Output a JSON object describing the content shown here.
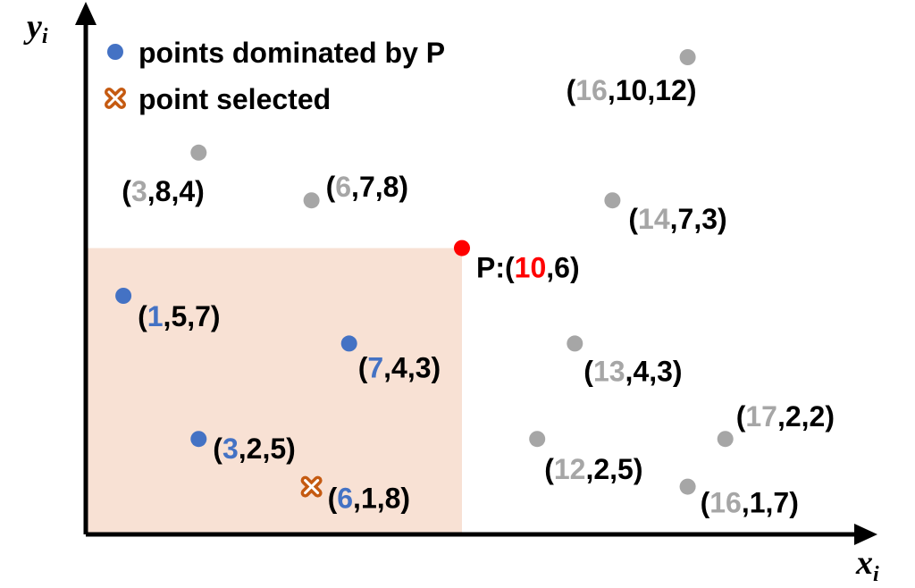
{
  "colors": {
    "region": "#f8e1d4",
    "axis": "#000000",
    "dominated": "#4472c4",
    "other": "#a6a6a6",
    "p": "#ff0000",
    "selected": "#c55a11",
    "text": "#000000"
  },
  "axes": {
    "x": {
      "label": "x",
      "sub": "i"
    },
    "y": {
      "label": "y",
      "sub": "i"
    }
  },
  "legend": {
    "dominated": {
      "icon": "blue-dot-icon",
      "label": "points dominated by P"
    },
    "selected": {
      "icon": "orange-cross-icon",
      "label": "point selected"
    }
  },
  "region": {
    "x_max": 10,
    "y_max": 6
  },
  "chart_data": {
    "type": "scatter",
    "dominator": {
      "x": 10,
      "y": 6,
      "prefix": "P:(",
      "first": "10",
      "rest": ",6)"
    },
    "points": [
      {
        "x": 3,
        "y": 8,
        "first": "3",
        "rest": ",8,4)",
        "kind": "other"
      },
      {
        "x": 6,
        "y": 7,
        "first": "6",
        "rest": ",7,8)",
        "kind": "other"
      },
      {
        "x": 16,
        "y": 10,
        "first": "16",
        "rest": ",10,12)",
        "kind": "other"
      },
      {
        "x": 14,
        "y": 7,
        "first": "14",
        "rest": ",7,3)",
        "kind": "other"
      },
      {
        "x": 13,
        "y": 4,
        "first": "13",
        "rest": ",4,3)",
        "kind": "other"
      },
      {
        "x": 17,
        "y": 2,
        "first": "17",
        "rest": ",2,2)",
        "kind": "other"
      },
      {
        "x": 12,
        "y": 2,
        "first": "12",
        "rest": ",2,5)",
        "kind": "other"
      },
      {
        "x": 16,
        "y": 1,
        "first": "16",
        "rest": ",1,7)",
        "kind": "other"
      },
      {
        "x": 1,
        "y": 5,
        "first": "1",
        "rest": ",5,7)",
        "kind": "dominated"
      },
      {
        "x": 7,
        "y": 4,
        "first": "7",
        "rest": ",4,3)",
        "kind": "dominated"
      },
      {
        "x": 3,
        "y": 2,
        "first": "3",
        "rest": ",2,5)",
        "kind": "dominated"
      },
      {
        "x": 6,
        "y": 1,
        "first": "6",
        "rest": ",1,8)",
        "kind": "selected"
      }
    ]
  }
}
